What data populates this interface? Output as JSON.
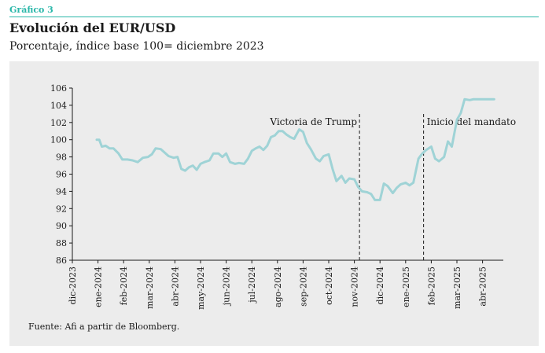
{
  "header": {
    "tag": "Gráfico 3",
    "title": "Evolución del EUR/USD",
    "subtitle": "Porcentaje, índice base 100= diciembre 2023"
  },
  "footer": {
    "source": "Fuente: Afi a partir de Bloomberg."
  },
  "colors": {
    "accent": "#2ab7a9",
    "series": "#9fd3d6",
    "panel": "#ececec"
  },
  "chart_data": {
    "type": "line",
    "ylim": [
      86,
      106
    ],
    "yticks": [
      86,
      88,
      90,
      92,
      94,
      96,
      98,
      100,
      102,
      104,
      106
    ],
    "x_tick_labels": [
      "dic-2023",
      "ene-2024",
      "feb-2024",
      "mar-2024",
      "abr-2024",
      "may-2024",
      "jun-2024",
      "jul-2024",
      "ago-2024",
      "sep-2024",
      "oct-2024",
      "nov-2024",
      "dic-2024",
      "ene-2025",
      "feb-2025",
      "mar-2025",
      "abr-2025"
    ],
    "x_range_months": [
      0,
      16.6
    ],
    "series": [
      {
        "name": "",
        "x_months": [
          0.95,
          1.05,
          1.15,
          1.3,
          1.45,
          1.6,
          1.8,
          1.95,
          2.15,
          2.35,
          2.55,
          2.75,
          2.95,
          3.1,
          3.25,
          3.45,
          3.6,
          3.75,
          3.95,
          4.1,
          4.25,
          4.4,
          4.55,
          4.7,
          4.85,
          5.0,
          5.15,
          5.35,
          5.5,
          5.7,
          5.85,
          6.0,
          6.15,
          6.35,
          6.5,
          6.7,
          6.85,
          7.0,
          7.15,
          7.3,
          7.45,
          7.6,
          7.75,
          7.9,
          8.05,
          8.2,
          8.35,
          8.5,
          8.65,
          8.85,
          9.0,
          9.15,
          9.3,
          9.5,
          9.65,
          9.8,
          10.0,
          10.15,
          10.3,
          10.5,
          10.65,
          10.8,
          11.0,
          11.15,
          11.3,
          11.5,
          11.65,
          11.8,
          12.0,
          12.15,
          12.3,
          12.5,
          12.65,
          12.8,
          13.0,
          13.15,
          13.3,
          13.5,
          13.65,
          13.8,
          14.0,
          14.15,
          14.3,
          14.5,
          14.65,
          14.8,
          15.0,
          15.15,
          15.3,
          15.5,
          15.65,
          15.8,
          16.0,
          16.15,
          16.3,
          16.45
        ],
        "values": [
          100.0,
          100.0,
          99.2,
          99.3,
          99.0,
          99.0,
          98.4,
          97.7,
          97.7,
          97.6,
          97.4,
          97.9,
          98.0,
          98.3,
          99.0,
          98.9,
          98.5,
          98.1,
          97.9,
          98.0,
          96.6,
          96.4,
          96.8,
          97.0,
          96.5,
          97.2,
          97.4,
          97.6,
          98.4,
          98.4,
          98.0,
          98.4,
          97.4,
          97.2,
          97.3,
          97.2,
          97.8,
          98.7,
          99.0,
          99.2,
          98.8,
          99.3,
          100.3,
          100.5,
          101.0,
          101.0,
          100.6,
          100.3,
          100.1,
          101.2,
          100.9,
          99.6,
          98.9,
          97.8,
          97.5,
          98.1,
          98.3,
          96.6,
          95.2,
          95.8,
          95.0,
          95.5,
          95.4,
          94.5,
          94.0,
          93.9,
          93.7,
          93.0,
          93.0,
          94.9,
          94.6,
          93.8,
          94.4,
          94.8,
          95.0,
          94.7,
          95.0,
          97.8,
          98.4,
          98.8,
          99.2,
          97.8,
          97.5,
          98.0,
          99.8,
          99.2,
          102.3,
          103.1,
          104.7,
          104.6,
          104.7,
          104.7,
          104.7,
          104.7,
          104.7,
          104.7
        ]
      }
    ],
    "annotations": [
      {
        "label": "Victoria de Trump",
        "x_month": 11.2
      },
      {
        "label": "Inicio del mandato",
        "x_month": 13.7
      }
    ]
  }
}
